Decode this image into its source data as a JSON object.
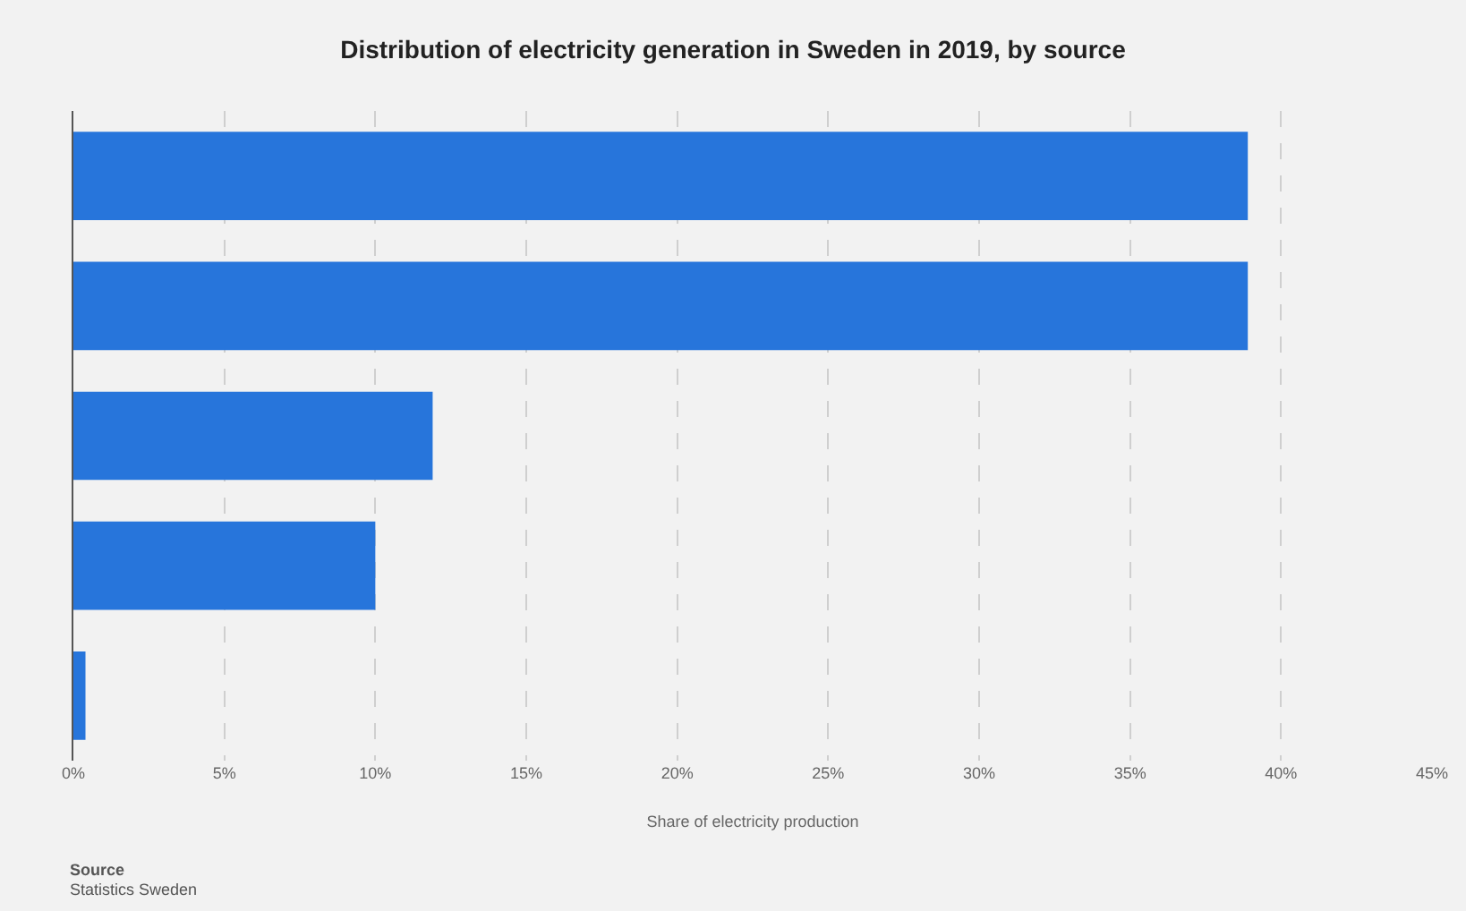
{
  "chart_data": {
    "type": "bar",
    "orientation": "horizontal",
    "title": "Distribution of electricity generation in Sweden in 2019, by source",
    "xlabel": "Share of electricity production",
    "categories": [
      null,
      null,
      null,
      null,
      null
    ],
    "values": [
      38.9,
      38.9,
      11.9,
      10.0,
      0.4
    ],
    "color": "#2775db",
    "xlim": [
      0,
      45
    ],
    "xticks": [
      {
        "value": 0,
        "label": "0%"
      },
      {
        "value": 5,
        "label": "5%"
      },
      {
        "value": 10,
        "label": "10%"
      },
      {
        "value": 15,
        "label": "15%"
      },
      {
        "value": 20,
        "label": "20%"
      },
      {
        "value": 25,
        "label": "25%"
      },
      {
        "value": 30,
        "label": "30%"
      },
      {
        "value": 35,
        "label": "35%"
      },
      {
        "value": 40,
        "label": "40%"
      },
      {
        "value": 45,
        "label": "45%"
      }
    ],
    "grid": "x",
    "tick_labels": "x",
    "legend": false,
    "annotations": [
      "Source",
      "Statistics Sweden"
    ]
  }
}
